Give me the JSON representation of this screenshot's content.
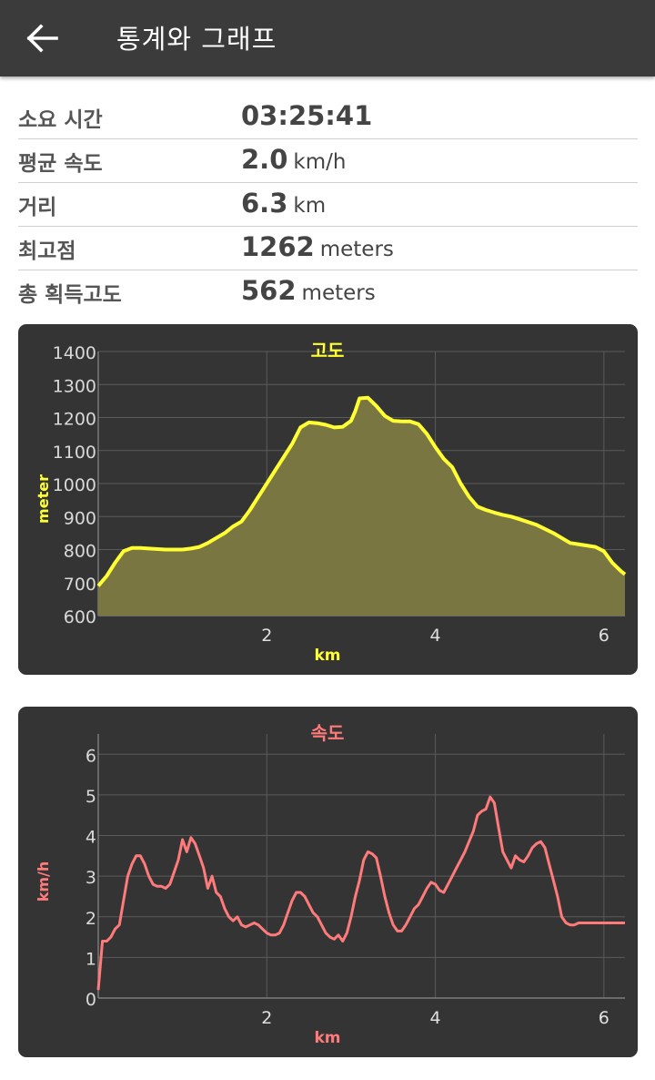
{
  "header": {
    "title": "통계와 그래프",
    "back_icon": "arrow-left-icon"
  },
  "stats": [
    {
      "label": "소요 시간",
      "value": "03:25:41",
      "unit": ""
    },
    {
      "label": "평균 속도",
      "value": "2.0",
      "unit": "km/h"
    },
    {
      "label": "거리",
      "value": "6.3",
      "unit": "km"
    },
    {
      "label": "최고점",
      "value": "1262",
      "unit": "meters"
    },
    {
      "label": "총 획득고도",
      "value": "562",
      "unit": "meters"
    }
  ],
  "chart_data": [
    {
      "type": "area",
      "title": "고도",
      "xlabel": "km",
      "ylabel": "meter",
      "color": "#ffff33",
      "fill": "#7a7642",
      "xlim": [
        0,
        6.25
      ],
      "ylim": [
        600,
        1400
      ],
      "xticks": [
        2,
        4,
        6
      ],
      "yticks": [
        600,
        700,
        800,
        900,
        1000,
        1100,
        1200,
        1300,
        1400
      ],
      "grid": true,
      "x": [
        0,
        0.1,
        0.2,
        0.3,
        0.4,
        0.5,
        0.6,
        0.8,
        1.0,
        1.1,
        1.2,
        1.3,
        1.4,
        1.5,
        1.6,
        1.7,
        1.8,
        1.9,
        2.0,
        2.1,
        2.2,
        2.3,
        2.4,
        2.5,
        2.6,
        2.7,
        2.8,
        2.9,
        3.0,
        3.05,
        3.1,
        3.2,
        3.3,
        3.4,
        3.5,
        3.6,
        3.7,
        3.8,
        3.9,
        4.0,
        4.1,
        4.2,
        4.3,
        4.4,
        4.5,
        4.6,
        4.7,
        4.8,
        4.9,
        5.0,
        5.2,
        5.4,
        5.6,
        5.8,
        5.9,
        6.0,
        6.1,
        6.2,
        6.25
      ],
      "y": [
        690,
        720,
        760,
        795,
        805,
        805,
        803,
        800,
        800,
        803,
        808,
        820,
        835,
        850,
        870,
        885,
        920,
        960,
        1000,
        1040,
        1080,
        1120,
        1170,
        1185,
        1183,
        1178,
        1170,
        1172,
        1190,
        1220,
        1258,
        1260,
        1235,
        1205,
        1190,
        1188,
        1188,
        1180,
        1150,
        1110,
        1075,
        1050,
        1000,
        960,
        930,
        920,
        912,
        905,
        900,
        892,
        875,
        850,
        820,
        812,
        808,
        795,
        760,
        735,
        725
      ]
    },
    {
      "type": "line",
      "title": "속도",
      "xlabel": "km",
      "ylabel": "km/h",
      "color": "#ff7b7b",
      "xlim": [
        0,
        6.25
      ],
      "ylim": [
        0,
        6.5
      ],
      "xticks": [
        2,
        4,
        6
      ],
      "yticks": [
        0,
        1,
        2,
        3,
        4,
        5,
        6
      ],
      "grid": true,
      "x": [
        0,
        0.05,
        0.1,
        0.15,
        0.2,
        0.25,
        0.3,
        0.35,
        0.4,
        0.45,
        0.5,
        0.55,
        0.6,
        0.65,
        0.7,
        0.75,
        0.8,
        0.85,
        0.9,
        0.95,
        1.0,
        1.05,
        1.1,
        1.15,
        1.2,
        1.25,
        1.3,
        1.35,
        1.4,
        1.45,
        1.5,
        1.55,
        1.6,
        1.65,
        1.7,
        1.75,
        1.8,
        1.85,
        1.9,
        1.95,
        2.0,
        2.05,
        2.1,
        2.15,
        2.2,
        2.25,
        2.3,
        2.35,
        2.4,
        2.45,
        2.5,
        2.55,
        2.6,
        2.65,
        2.7,
        2.75,
        2.8,
        2.85,
        2.9,
        2.95,
        3.0,
        3.05,
        3.1,
        3.15,
        3.2,
        3.25,
        3.3,
        3.35,
        3.4,
        3.45,
        3.5,
        3.55,
        3.6,
        3.65,
        3.7,
        3.75,
        3.8,
        3.85,
        3.9,
        3.95,
        4.0,
        4.05,
        4.1,
        4.15,
        4.2,
        4.25,
        4.3,
        4.35,
        4.4,
        4.45,
        4.5,
        4.55,
        4.6,
        4.65,
        4.7,
        4.75,
        4.8,
        4.85,
        4.9,
        4.95,
        5.0,
        5.05,
        5.1,
        5.15,
        5.2,
        5.25,
        5.3,
        5.35,
        5.4,
        5.45,
        5.5,
        5.55,
        5.6,
        5.65,
        5.7,
        5.75,
        5.8,
        5.85,
        5.9,
        5.95,
        6.0,
        6.05,
        6.1,
        6.15,
        6.2,
        6.25
      ],
      "y": [
        0.2,
        1.4,
        1.4,
        1.5,
        1.7,
        1.8,
        2.4,
        3.0,
        3.3,
        3.5,
        3.5,
        3.3,
        3.0,
        2.8,
        2.75,
        2.75,
        2.7,
        2.8,
        3.1,
        3.4,
        3.9,
        3.6,
        3.95,
        3.8,
        3.5,
        3.2,
        2.7,
        3.0,
        2.6,
        2.5,
        2.2,
        2.0,
        1.9,
        2.0,
        1.8,
        1.75,
        1.8,
        1.85,
        1.8,
        1.7,
        1.6,
        1.55,
        1.55,
        1.6,
        1.8,
        2.1,
        2.4,
        2.6,
        2.6,
        2.5,
        2.3,
        2.1,
        2.0,
        1.8,
        1.6,
        1.5,
        1.45,
        1.55,
        1.4,
        1.6,
        2.0,
        2.5,
        2.9,
        3.4,
        3.6,
        3.55,
        3.45,
        3.0,
        2.5,
        2.1,
        1.8,
        1.65,
        1.65,
        1.8,
        2.0,
        2.2,
        2.3,
        2.5,
        2.7,
        2.85,
        2.8,
        2.65,
        2.6,
        2.8,
        3.0,
        3.2,
        3.4,
        3.6,
        3.85,
        4.1,
        4.5,
        4.6,
        4.65,
        4.95,
        4.8,
        4.2,
        3.6,
        3.4,
        3.2,
        3.5,
        3.4,
        3.35,
        3.5,
        3.7,
        3.8,
        3.85,
        3.7,
        3.3,
        2.9,
        2.5,
        2.0,
        1.85,
        1.8,
        1.8,
        1.85,
        1.85,
        1.85,
        1.85,
        1.85,
        1.85,
        1.85,
        1.85,
        1.85,
        1.85,
        1.85,
        1.85
      ]
    }
  ]
}
